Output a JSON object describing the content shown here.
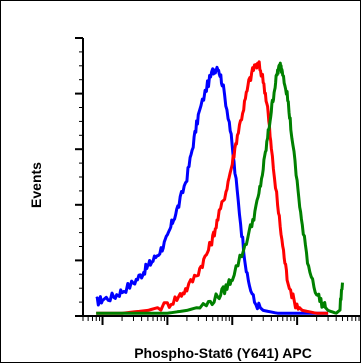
{
  "chart_data": {
    "type": "line",
    "title": "",
    "xlabel": "Phospho-Stat6 (Y641) APC",
    "ylabel": "Events",
    "x_scale": "log",
    "x_range": [
      0.5,
      10000
    ],
    "y_range": [
      0,
      100
    ],
    "grid": false,
    "legend": "none",
    "series": [
      {
        "color": "#0000ff",
        "points": [
          [
            0.8,
            5
          ],
          [
            1,
            6
          ],
          [
            1.5,
            7
          ],
          [
            2,
            9
          ],
          [
            3,
            12
          ],
          [
            4,
            15
          ],
          [
            5,
            18
          ],
          [
            6,
            20
          ],
          [
            8,
            24
          ],
          [
            10,
            28
          ],
          [
            12,
            34
          ],
          [
            15,
            40
          ],
          [
            20,
            50
          ],
          [
            25,
            62
          ],
          [
            30,
            72
          ],
          [
            40,
            82
          ],
          [
            50,
            88
          ],
          [
            60,
            90
          ],
          [
            70,
            84
          ],
          [
            90,
            70
          ],
          [
            110,
            52
          ],
          [
            140,
            30
          ],
          [
            170,
            14
          ],
          [
            220,
            5
          ],
          [
            300,
            2
          ],
          [
            500,
            1
          ],
          [
            1000,
            1
          ],
          [
            3000,
            1
          ]
        ]
      },
      {
        "color": "#ff0000",
        "points": [
          [
            0.8,
            1
          ],
          [
            2,
            1
          ],
          [
            5,
            2
          ],
          [
            10,
            4
          ],
          [
            15,
            7
          ],
          [
            20,
            10
          ],
          [
            30,
            16
          ],
          [
            40,
            22
          ],
          [
            50,
            28
          ],
          [
            60,
            35
          ],
          [
            80,
            45
          ],
          [
            100,
            55
          ],
          [
            120,
            65
          ],
          [
            150,
            75
          ],
          [
            180,
            84
          ],
          [
            220,
            90
          ],
          [
            260,
            90
          ],
          [
            300,
            85
          ],
          [
            350,
            75
          ],
          [
            400,
            60
          ],
          [
            500,
            40
          ],
          [
            600,
            25
          ],
          [
            700,
            14
          ],
          [
            900,
            5
          ],
          [
            1200,
            2
          ],
          [
            2000,
            1
          ],
          [
            3000,
            1
          ]
        ]
      },
      {
        "color": "#008000",
        "points": [
          [
            0.8,
            1
          ],
          [
            10,
            1
          ],
          [
            20,
            2
          ],
          [
            40,
            4
          ],
          [
            60,
            7
          ],
          [
            80,
            10
          ],
          [
            100,
            14
          ],
          [
            150,
            24
          ],
          [
            200,
            33
          ],
          [
            250,
            42
          ],
          [
            300,
            53
          ],
          [
            350,
            64
          ],
          [
            400,
            74
          ],
          [
            450,
            82
          ],
          [
            500,
            88
          ],
          [
            550,
            90
          ],
          [
            600,
            88
          ],
          [
            700,
            80
          ],
          [
            800,
            68
          ],
          [
            1000,
            48
          ],
          [
            1200,
            32
          ],
          [
            1500,
            18
          ],
          [
            2000,
            8
          ],
          [
            2500,
            4
          ],
          [
            3000,
            2
          ],
          [
            4000,
            1
          ],
          [
            4500,
            2
          ],
          [
            5000,
            12
          ]
        ]
      }
    ]
  }
}
